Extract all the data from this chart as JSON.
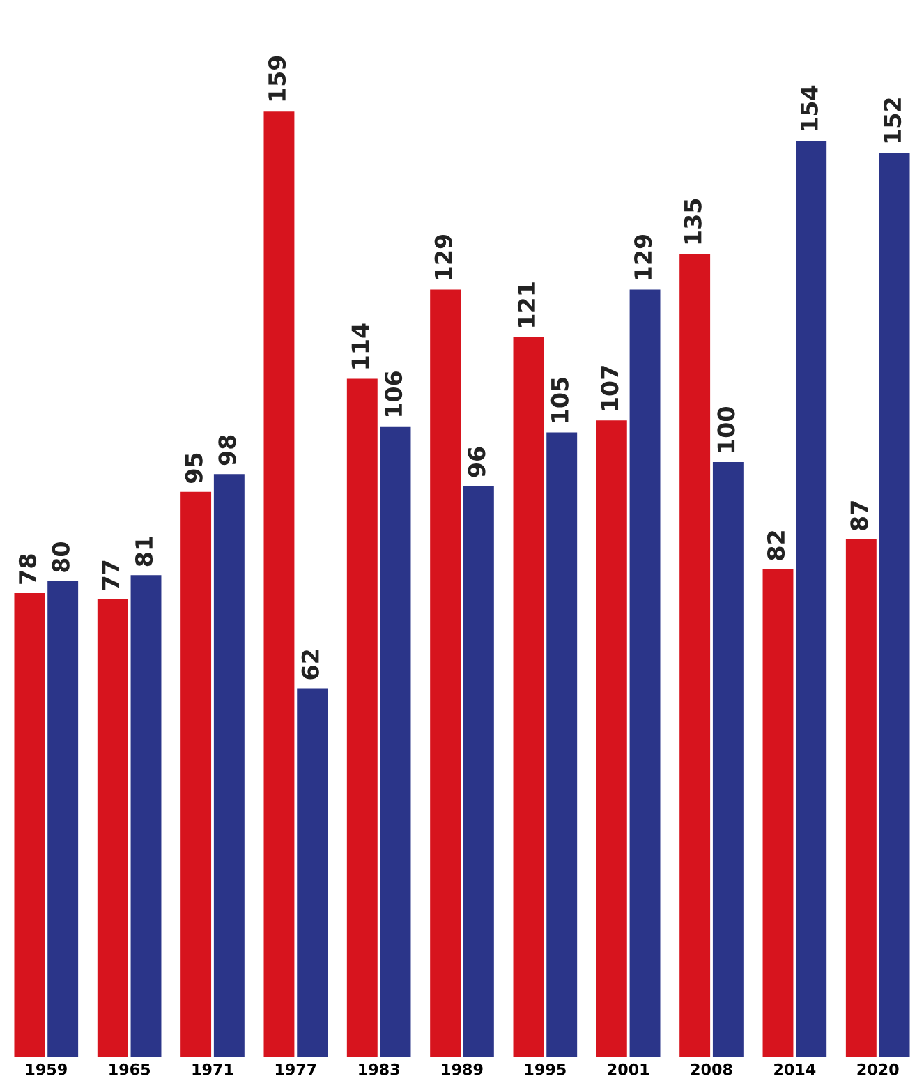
{
  "chart_data": {
    "type": "bar",
    "categories": [
      "1959",
      "1965",
      "1971",
      "1977",
      "1983",
      "1989",
      "1995",
      "2001",
      "2008",
      "2014",
      "2020"
    ],
    "series": [
      {
        "color": "#d7141e",
        "values": [
          78,
          77,
          95,
          159,
          114,
          129,
          121,
          107,
          135,
          82,
          87
        ]
      },
      {
        "color": "#2b3589",
        "values": [
          80,
          81,
          98,
          62,
          106,
          96,
          105,
          129,
          100,
          154,
          152
        ]
      }
    ],
    "data_labels": true,
    "grid": false,
    "legend": false
  }
}
